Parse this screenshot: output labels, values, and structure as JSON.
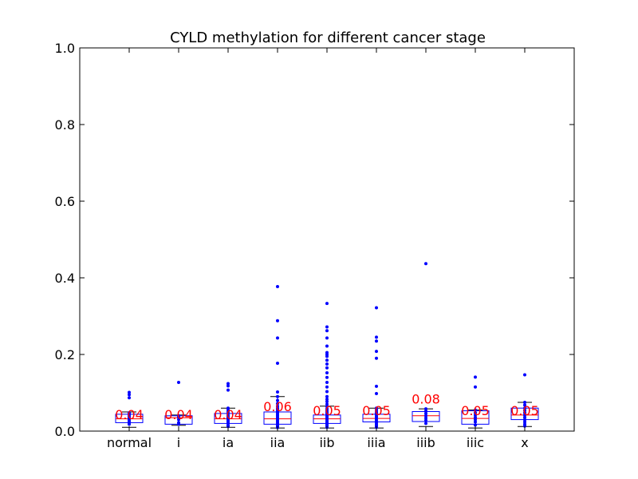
{
  "chart_data": {
    "type": "box",
    "title": "CYLD methylation for different cancer stage",
    "xlabel": "",
    "ylabel": "",
    "ylim": [
      0.0,
      1.0
    ],
    "yticks": [
      "0.0",
      "0.2",
      "0.4",
      "0.6",
      "0.8",
      "1.0"
    ],
    "ytick_values": [
      0.0,
      0.2,
      0.4,
      0.6,
      0.8,
      1.0
    ],
    "grid": false,
    "colors": {
      "box": "#0000ff",
      "median": "#ff0000",
      "whisker": "#000000",
      "points": "#0000ff",
      "label": "#ff0000"
    },
    "categories": [
      "normal",
      "i",
      "ia",
      "iia",
      "iib",
      "iiia",
      "iiib",
      "iiic",
      "x"
    ],
    "boxes": [
      {
        "category": "normal",
        "label": "0.04",
        "label_value": 0.04,
        "whisker_low": 0.01,
        "q1": 0.022,
        "median": 0.032,
        "q3": 0.044,
        "whisker_high": 0.05,
        "points": [
          0.101,
          0.095,
          0.087,
          0.048,
          0.045,
          0.042,
          0.038,
          0.034,
          0.03,
          0.026,
          0.022,
          0.018
        ]
      },
      {
        "category": "i",
        "label": "0.04",
        "label_value": 0.04,
        "whisker_low": 0.015,
        "q1": 0.018,
        "median": 0.035,
        "q3": 0.04,
        "whisker_high": 0.042,
        "points": [
          0.127,
          0.04,
          0.036,
          0.03,
          0.022,
          0.018
        ]
      },
      {
        "category": "ia",
        "label": "0.04",
        "label_value": 0.04,
        "whisker_low": 0.01,
        "q1": 0.02,
        "median": 0.032,
        "q3": 0.046,
        "whisker_high": 0.06,
        "points": [
          0.124,
          0.118,
          0.107,
          0.06,
          0.055,
          0.05,
          0.045,
          0.04,
          0.036,
          0.032,
          0.028,
          0.024,
          0.02,
          0.015,
          0.012
        ]
      },
      {
        "category": "iia",
        "label": "0.06",
        "label_value": 0.06,
        "whisker_low": 0.008,
        "q1": 0.018,
        "median": 0.032,
        "q3": 0.05,
        "whisker_high": 0.09,
        "points": [
          0.377,
          0.288,
          0.243,
          0.177,
          0.102,
          0.09,
          0.08,
          0.072,
          0.065,
          0.06,
          0.056,
          0.052,
          0.048,
          0.044,
          0.04,
          0.036,
          0.032,
          0.028,
          0.024,
          0.02,
          0.016,
          0.012,
          0.009
        ]
      },
      {
        "category": "iib",
        "label": "0.05",
        "label_value": 0.05,
        "whisker_low": 0.008,
        "q1": 0.02,
        "median": 0.032,
        "q3": 0.042,
        "whisker_high": 0.065,
        "points": [
          0.333,
          0.272,
          0.262,
          0.243,
          0.222,
          0.205,
          0.2,
          0.195,
          0.185,
          0.175,
          0.165,
          0.152,
          0.14,
          0.127,
          0.115,
          0.103,
          0.09,
          0.083,
          0.077,
          0.07,
          0.064,
          0.058,
          0.054,
          0.05,
          0.046,
          0.042,
          0.038,
          0.034,
          0.03,
          0.026,
          0.022,
          0.018,
          0.014,
          0.01
        ]
      },
      {
        "category": "iiia",
        "label": "0.05",
        "label_value": 0.05,
        "whisker_low": 0.008,
        "q1": 0.024,
        "median": 0.033,
        "q3": 0.044,
        "whisker_high": 0.06,
        "points": [
          0.322,
          0.245,
          0.235,
          0.208,
          0.19,
          0.117,
          0.098,
          0.06,
          0.055,
          0.05,
          0.046,
          0.042,
          0.038,
          0.034,
          0.03,
          0.026,
          0.022,
          0.018,
          0.014,
          0.01
        ]
      },
      {
        "category": "iiib",
        "label": "0.08",
        "label_value": 0.08,
        "whisker_low": 0.012,
        "q1": 0.025,
        "median": 0.04,
        "q3": 0.051,
        "whisker_high": 0.058,
        "points": [
          0.437,
          0.058,
          0.052,
          0.046,
          0.04,
          0.034,
          0.028,
          0.02
        ]
      },
      {
        "category": "iiic",
        "label": "0.05",
        "label_value": 0.05,
        "whisker_low": 0.008,
        "q1": 0.018,
        "median": 0.033,
        "q3": 0.053,
        "whisker_high": 0.055,
        "points": [
          0.141,
          0.115,
          0.055,
          0.048,
          0.042,
          0.036,
          0.03,
          0.024,
          0.016
        ]
      },
      {
        "category": "x",
        "label": "0.05",
        "label_value": 0.05,
        "whisker_low": 0.012,
        "q1": 0.03,
        "median": 0.042,
        "q3": 0.06,
        "whisker_high": 0.075,
        "points": [
          0.147,
          0.075,
          0.068,
          0.06,
          0.054,
          0.048,
          0.042,
          0.036,
          0.03,
          0.024,
          0.018,
          0.013
        ]
      }
    ]
  }
}
